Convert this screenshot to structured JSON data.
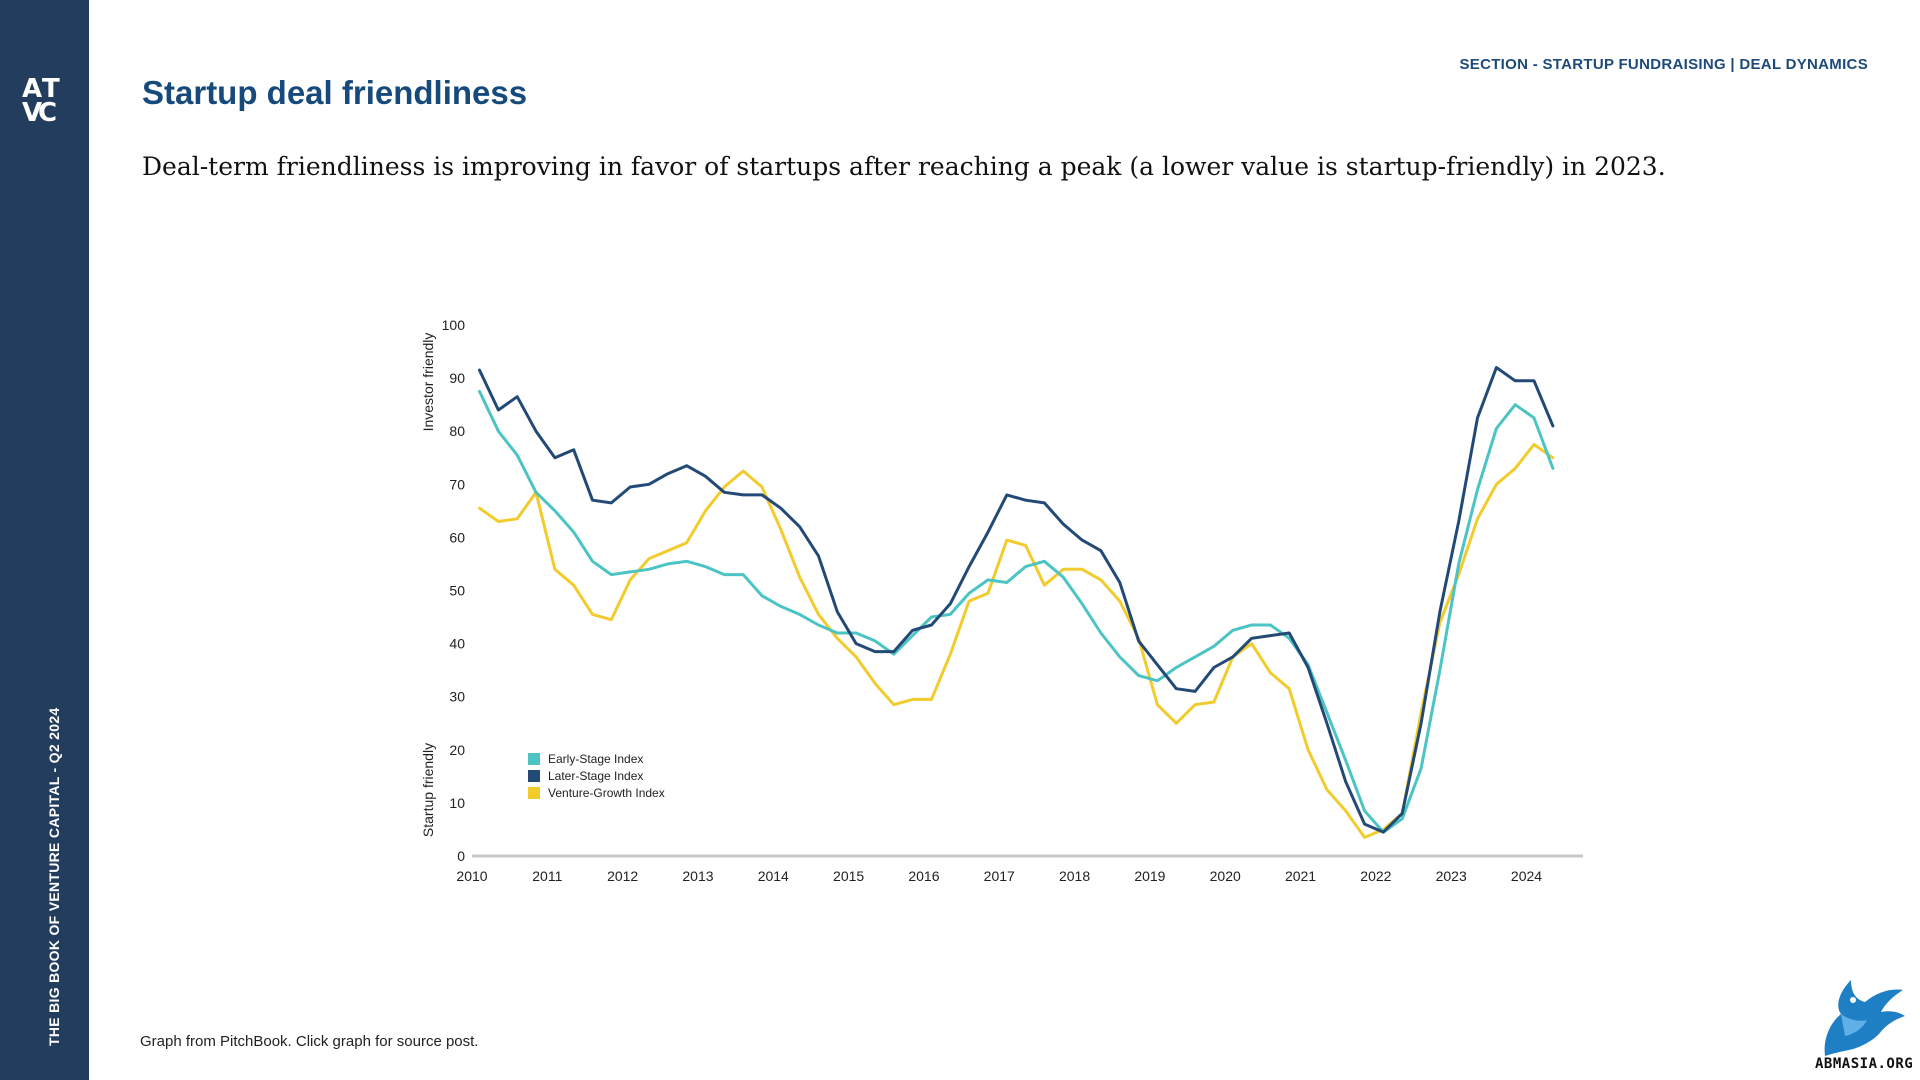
{
  "sidebar": {
    "logo_letters": [
      "A",
      "T",
      "V",
      "C"
    ],
    "vertical_text": "THE BIG BOOK OF VENTURE CAPITAL - Q2 2024"
  },
  "header": {
    "section_label": "SECTION - STARTUP FUNDRAISING | DEAL DYNAMICS",
    "title": "Startup deal friendliness",
    "subtitle": "Deal-term friendliness is improving in favor of startups after reaching a peak (a lower value is startup-friendly) in 2023."
  },
  "footer": {
    "note": "Graph from PitchBook. Click graph for source post.",
    "watermark_text": "ABMASIA.ORG"
  },
  "colors": {
    "sidebar": "#233d5e",
    "early_stage": "#4cc4c4",
    "later_stage": "#234a76",
    "venture_growth": "#f2cb2c"
  },
  "chart_data": {
    "type": "line",
    "ylabel_top": "Investor friendly",
    "ylabel_bottom": "Startup friendly",
    "ylim": [
      0,
      100
    ],
    "y_ticks": [
      0,
      10,
      20,
      30,
      40,
      50,
      60,
      70,
      80,
      90,
      100
    ],
    "xlim": [
      2010,
      2024.75
    ],
    "x_ticks": [
      "2010",
      "2011",
      "2012",
      "2013",
      "2014",
      "2015",
      "2016",
      "2017",
      "2018",
      "2019",
      "2020",
      "2021",
      "2022",
      "2023",
      "2024"
    ],
    "grid": false,
    "legend": "bottom-left",
    "x": [
      2010.1,
      2010.35,
      2010.6,
      2010.85,
      2011.1,
      2011.35,
      2011.6,
      2011.85,
      2012.1,
      2012.35,
      2012.6,
      2012.85,
      2013.1,
      2013.35,
      2013.6,
      2013.85,
      2014.1,
      2014.35,
      2014.6,
      2014.85,
      2015.1,
      2015.35,
      2015.6,
      2015.85,
      2016.1,
      2016.35,
      2016.6,
      2016.85,
      2017.1,
      2017.35,
      2017.6,
      2017.85,
      2018.1,
      2018.35,
      2018.6,
      2018.85,
      2019.1,
      2019.35,
      2019.6,
      2019.85,
      2020.1,
      2020.35,
      2020.6,
      2020.85,
      2021.1,
      2021.35,
      2021.6,
      2021.85,
      2022.1,
      2022.35,
      2022.6,
      2022.85,
      2023.1,
      2023.35,
      2023.6,
      2023.85,
      2024.1,
      2024.35
    ],
    "series": [
      {
        "name": "Early-Stage Index",
        "values": [
          87.5,
          80,
          75.5,
          68.5,
          65,
          61,
          55.5,
          53,
          53.5,
          54,
          55,
          55.5,
          54.5,
          53,
          53,
          49,
          47,
          45.5,
          43.5,
          42,
          42,
          40.5,
          38,
          41.5,
          45,
          45.5,
          49.5,
          52,
          51.5,
          54.5,
          55.5,
          52.5,
          47.5,
          42,
          37.5,
          34,
          33,
          35.5,
          37.5,
          39.5,
          42.5,
          43.5,
          43.5,
          41,
          36,
          27,
          18,
          8.5,
          4.5,
          7,
          16.5,
          35,
          55,
          69,
          80.5,
          85,
          82.5,
          73
        ]
      },
      {
        "name": "Later-Stage Index",
        "values": [
          91.5,
          84,
          86.5,
          80,
          75,
          76.5,
          67,
          66.5,
          69.5,
          70,
          72,
          73.5,
          71.5,
          68.5,
          68,
          68,
          65.5,
          62,
          56.5,
          46,
          40,
          38.5,
          38.5,
          42.5,
          43.5,
          47.5,
          54.5,
          61,
          68,
          67,
          66.5,
          62.5,
          59.5,
          57.5,
          51.5,
          40.5,
          36,
          31.5,
          31,
          35.5,
          37.5,
          41,
          41.5,
          42,
          35.5,
          25,
          14,
          6,
          4.5,
          8,
          25,
          46,
          63,
          82.5,
          92,
          89.5,
          89.5,
          81
        ]
      },
      {
        "name": "Venture-Growth Index",
        "values": [
          65.5,
          63,
          63.5,
          68.5,
          54,
          51,
          45.5,
          44.5,
          52,
          56,
          57.5,
          59,
          65,
          69.5,
          72.5,
          69.5,
          61.5,
          52.5,
          45.5,
          41,
          37.5,
          32.5,
          28.5,
          29.5,
          29.5,
          38,
          48,
          49.5,
          59.5,
          58.5,
          51,
          54,
          54,
          52,
          48,
          41,
          28.5,
          25,
          28.5,
          29,
          37.5,
          40,
          34.5,
          31.5,
          20,
          12.5,
          8.5,
          3.5,
          5,
          8,
          27,
          44,
          53,
          63.5,
          70,
          73,
          77.5,
          75
        ]
      }
    ]
  }
}
